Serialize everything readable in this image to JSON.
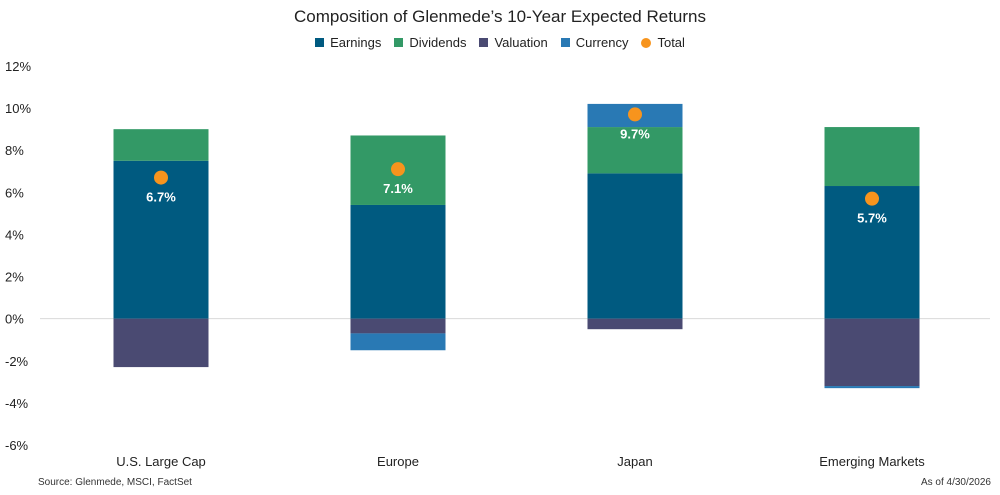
{
  "chart_data": {
    "type": "bar",
    "stacked": true,
    "title": "Composition of Glenmede’s 10-Year Expected Returns",
    "categories": [
      "U.S. Large Cap",
      "Europe",
      "Japan",
      "Emerging Markets"
    ],
    "series": [
      {
        "name": "Earnings",
        "color": "#005a80",
        "values": [
          7.5,
          5.4,
          6.9,
          6.3
        ]
      },
      {
        "name": "Dividends",
        "color": "#339966",
        "values": [
          1.5,
          3.3,
          2.2,
          2.8
        ]
      },
      {
        "name": "Valuation",
        "color": "#4a4a72",
        "values": [
          -2.3,
          -0.7,
          -0.5,
          -3.2
        ]
      },
      {
        "name": "Currency",
        "color": "#2979b4",
        "values": [
          0.0,
          -0.8,
          1.1,
          -0.1
        ]
      }
    ],
    "total": {
      "name": "Total",
      "color": "#f7941d",
      "values": [
        6.7,
        7.1,
        9.7,
        5.7
      ],
      "labels": [
        "6.7%",
        "7.1%",
        "9.7%",
        "5.7%"
      ]
    },
    "ylim": [
      -6,
      12
    ],
    "yticks": [
      12,
      10,
      8,
      6,
      4,
      2,
      0,
      -2,
      -4,
      -6
    ],
    "ytick_labels": [
      "12%",
      "10%",
      "8%",
      "6%",
      "4%",
      "2%",
      "0%",
      "-2%",
      "-4%",
      "-6%"
    ],
    "legend_position": "top-center",
    "grid": false,
    "zero_line": true
  },
  "footer": {
    "source": "Source: Glenmede, MSCI, FactSet",
    "date": "As of 4/30/2026"
  }
}
